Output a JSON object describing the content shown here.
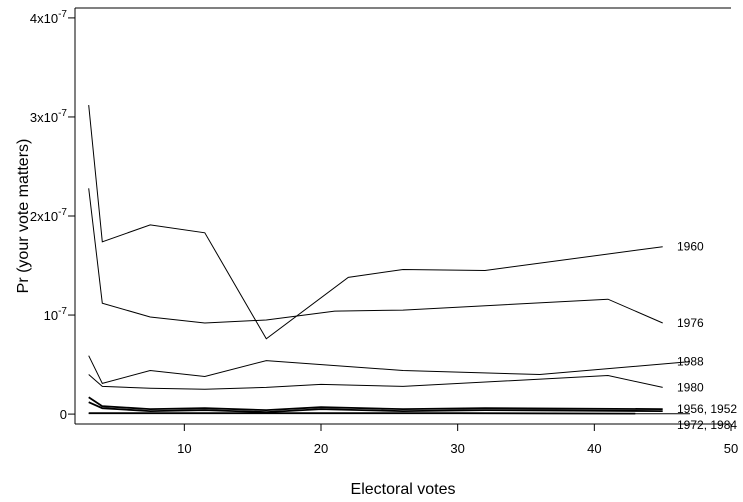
{
  "chart_data": {
    "type": "line",
    "title": "",
    "xlabel": "Electoral votes",
    "ylabel": "Pr (your vote matters)",
    "xlim": [
      2,
      50
    ],
    "ylim": [
      -1e-08,
      4.1e-07
    ],
    "x_ticks": [
      10,
      20,
      30,
      40,
      50
    ],
    "x_tick_labels": [
      "10",
      "20",
      "30",
      "40",
      "50"
    ],
    "y_ticks": [
      0,
      1e-07,
      2e-07,
      3e-07,
      4e-07
    ],
    "y_tick_labels": [
      {
        "mantissa": "0",
        "exp": ""
      },
      {
        "mantissa": "10",
        "exp": "-7"
      },
      {
        "mantissa": "2x10",
        "exp": "-7"
      },
      {
        "mantissa": "3x10",
        "exp": "-7"
      },
      {
        "mantissa": "4x10",
        "exp": "-7"
      }
    ],
    "grid": false,
    "series": [
      {
        "name": "1960",
        "thick": false,
        "x": [
          3,
          4,
          7.5,
          11.5,
          16,
          22,
          26,
          32,
          45
        ],
        "y": [
          3.12e-07,
          1.74e-07,
          1.91e-07,
          1.83e-07,
          7.6e-08,
          1.38e-07,
          1.46e-07,
          1.45e-07,
          1.69e-07
        ]
      },
      {
        "name": "1976",
        "thick": false,
        "x": [
          3,
          4,
          7.5,
          11.5,
          16,
          21,
          26,
          41,
          45
        ],
        "y": [
          2.28e-07,
          1.12e-07,
          9.8e-08,
          9.2e-08,
          9.5e-08,
          1.04e-07,
          1.05e-07,
          1.16e-07,
          9.2e-08
        ]
      },
      {
        "name": "1988",
        "thick": false,
        "x": [
          3,
          4,
          7.5,
          11.5,
          16,
          26,
          36,
          47
        ],
        "y": [
          5.9e-08,
          3.1e-08,
          4.4e-08,
          3.8e-08,
          5.4e-08,
          4.4e-08,
          4e-08,
          5.3e-08
        ]
      },
      {
        "name": "1980",
        "thick": false,
        "x": [
          3,
          4,
          7.5,
          11.5,
          16,
          20,
          26,
          41,
          45
        ],
        "y": [
          4e-08,
          2.8e-08,
          2.6e-08,
          2.5e-08,
          2.7e-08,
          3e-08,
          2.8e-08,
          3.9e-08,
          2.7e-08
        ]
      },
      {
        "name": "1956, 1952",
        "thick": true,
        "x": [
          3,
          4,
          7.5,
          11.5,
          16,
          20,
          26,
          32,
          45
        ],
        "y": [
          1.7e-08,
          8e-09,
          5e-09,
          6e-09,
          4e-09,
          7e-09,
          5e-09,
          6e-09,
          5e-09
        ]
      },
      {
        "name": "",
        "thick": true,
        "x": [
          3,
          4,
          7.5,
          11.5,
          16,
          20,
          26,
          32,
          45
        ],
        "y": [
          1.2e-08,
          6e-09,
          3e-09,
          4e-09,
          2e-09,
          5e-09,
          3e-09,
          4e-09,
          3e-09
        ]
      },
      {
        "name": "1972, 1984",
        "thick": true,
        "x": [
          3,
          7.5,
          11.5,
          20,
          30,
          43
        ],
        "y": [
          1e-09,
          1e-09,
          1e-09,
          1e-09,
          1e-09,
          5e-10
        ]
      },
      {
        "name": "",
        "thick": false,
        "x": [
          3,
          7.5,
          11.5,
          20,
          30,
          47
        ],
        "y": [
          5e-10,
          5e-10,
          5e-10,
          5e-10,
          5e-10,
          3e-10
        ]
      }
    ]
  }
}
